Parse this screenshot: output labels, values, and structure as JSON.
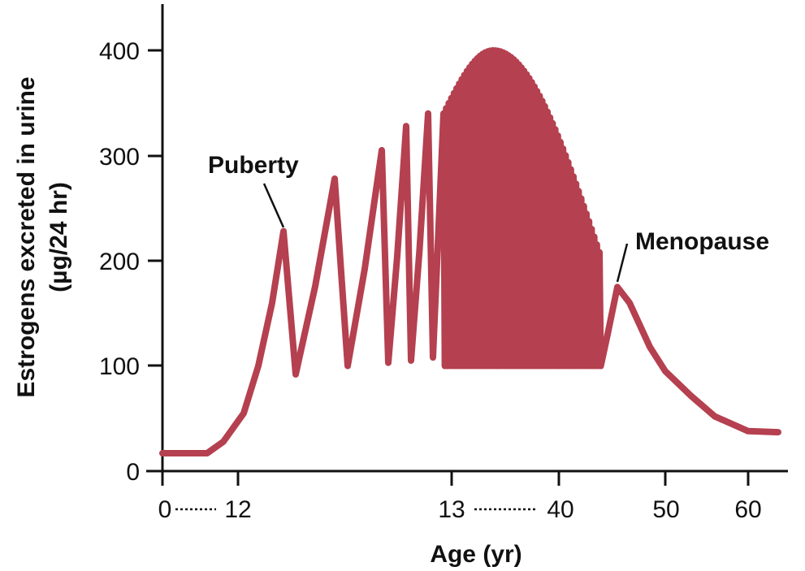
{
  "chart_data": {
    "type": "line",
    "title": "",
    "xlabel": "Age (yr)",
    "ylabel": "Estrogens excreted in urine",
    "ylabel_unit": "(µg/24 hr)",
    "ylim": [
      0,
      400
    ],
    "y_ticks": [
      "0",
      "100",
      "200",
      "300",
      "400"
    ],
    "x_tick_labels": [
      "0",
      "12",
      "13",
      "40",
      "50",
      "60"
    ],
    "x_axis_breaks": [
      [
        "0",
        "12"
      ],
      [
        "13",
        "40"
      ]
    ],
    "line_color": "#b5404f",
    "annotations": [
      {
        "text": "Puberty",
        "points_to": {
          "x": "puberty peak",
          "y": 228
        }
      },
      {
        "text": "Menopause",
        "points_to": {
          "x": 45,
          "y": 175
        }
      }
    ],
    "series": [
      {
        "segments": {
          "childhood_to_puberty": {
            "x_range": [
              "0",
              "12"
            ],
            "baseline": 17
          },
          "puberty_cycles_peaks": [
            228,
            278,
            305,
            328,
            340
          ],
          "puberty_cycles_troughs": [
            92,
            100,
            103,
            105,
            108
          ],
          "reproductive_years": {
            "x_range": [
              13,
              40
            ],
            "trough": 100,
            "peak_envelope_max": 400,
            "peak_envelope_start": 340,
            "peak_envelope_end": 208
          },
          "post_menopause": {
            "x": [
              45,
              50,
              55,
              60,
              63
            ],
            "y": [
              175,
              95,
              60,
              38,
              37
            ]
          }
        }
      }
    ]
  }
}
